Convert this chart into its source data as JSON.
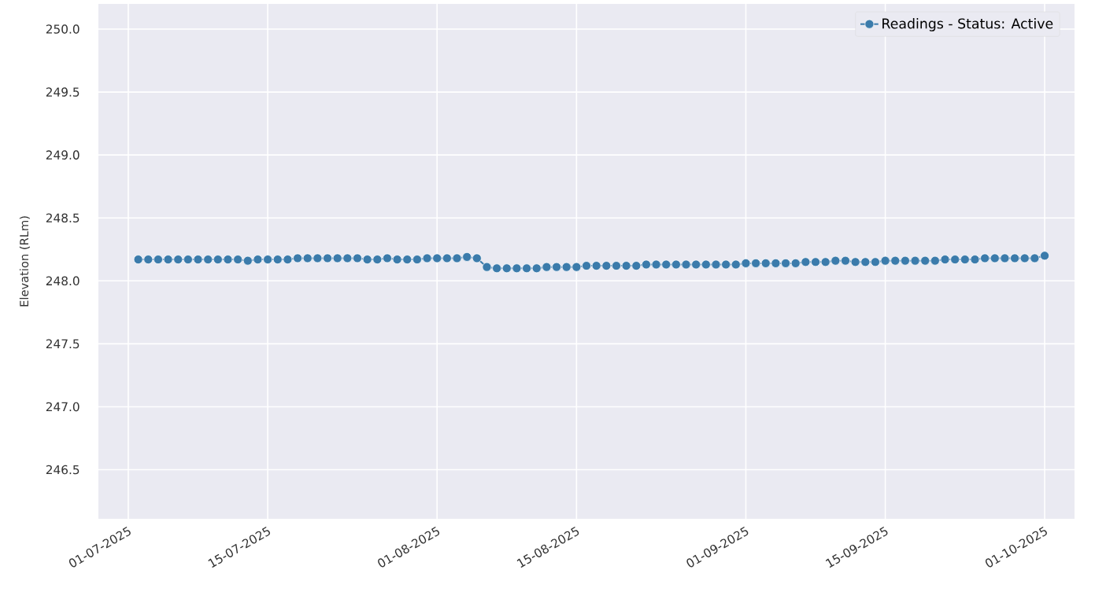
{
  "chart_data": {
    "type": "line",
    "ylabel": "Elevation (RLm)",
    "x": [
      "2025-07-02",
      "2025-07-03",
      "2025-07-04",
      "2025-07-05",
      "2025-07-06",
      "2025-07-07",
      "2025-07-08",
      "2025-07-09",
      "2025-07-10",
      "2025-07-11",
      "2025-07-12",
      "2025-07-13",
      "2025-07-14",
      "2025-07-15",
      "2025-07-16",
      "2025-07-17",
      "2025-07-18",
      "2025-07-19",
      "2025-07-20",
      "2025-07-21",
      "2025-07-22",
      "2025-07-23",
      "2025-07-24",
      "2025-07-25",
      "2025-07-26",
      "2025-07-27",
      "2025-07-28",
      "2025-07-29",
      "2025-07-30",
      "2025-07-31",
      "2025-08-01",
      "2025-08-02",
      "2025-08-03",
      "2025-08-04",
      "2025-08-05",
      "2025-08-06",
      "2025-08-07",
      "2025-08-08",
      "2025-08-09",
      "2025-08-10",
      "2025-08-11",
      "2025-08-12",
      "2025-08-13",
      "2025-08-14",
      "2025-08-15",
      "2025-08-16",
      "2025-08-17",
      "2025-08-18",
      "2025-08-19",
      "2025-08-20",
      "2025-08-21",
      "2025-08-22",
      "2025-08-23",
      "2025-08-24",
      "2025-08-25",
      "2025-08-26",
      "2025-08-27",
      "2025-08-28",
      "2025-08-29",
      "2025-08-30",
      "2025-08-31",
      "2025-09-01",
      "2025-09-02",
      "2025-09-03",
      "2025-09-04",
      "2025-09-05",
      "2025-09-06",
      "2025-09-07",
      "2025-09-08",
      "2025-09-09",
      "2025-09-10",
      "2025-09-11",
      "2025-09-12",
      "2025-09-13",
      "2025-09-14",
      "2025-09-15",
      "2025-09-16",
      "2025-09-17",
      "2025-09-18",
      "2025-09-19",
      "2025-09-20",
      "2025-09-21",
      "2025-09-22",
      "2025-09-23",
      "2025-09-24",
      "2025-09-25",
      "2025-09-26",
      "2025-09-27",
      "2025-09-28",
      "2025-09-29",
      "2025-09-30",
      "2025-10-01"
    ],
    "series": [
      {
        "name": "Readings - Status: Active",
        "color": "#3b7bab",
        "values": [
          248.17,
          248.17,
          248.17,
          248.17,
          248.17,
          248.17,
          248.17,
          248.17,
          248.17,
          248.17,
          248.17,
          248.16,
          248.17,
          248.17,
          248.17,
          248.17,
          248.18,
          248.18,
          248.18,
          248.18,
          248.18,
          248.18,
          248.18,
          248.17,
          248.17,
          248.18,
          248.17,
          248.17,
          248.17,
          248.18,
          248.18,
          248.18,
          248.18,
          248.19,
          248.18,
          248.11,
          248.1,
          248.1,
          248.1,
          248.1,
          248.1,
          248.11,
          248.11,
          248.11,
          248.11,
          248.12,
          248.12,
          248.12,
          248.12,
          248.12,
          248.12,
          248.13,
          248.13,
          248.13,
          248.13,
          248.13,
          248.13,
          248.13,
          248.13,
          248.13,
          248.13,
          248.14,
          248.14,
          248.14,
          248.14,
          248.14,
          248.14,
          248.15,
          248.15,
          248.15,
          248.16,
          248.16,
          248.15,
          248.15,
          248.15,
          248.16,
          248.16,
          248.16,
          248.16,
          248.16,
          248.16,
          248.17,
          248.17,
          248.17,
          248.17,
          248.18,
          248.18,
          248.18,
          248.18,
          248.18,
          248.18,
          248.2
        ]
      }
    ],
    "xlim": [
      "2025-06-28",
      "2025-10-04"
    ],
    "xticks": [
      {
        "value": "2025-07-01",
        "label": "01-07-2025"
      },
      {
        "value": "2025-07-15",
        "label": "15-07-2025"
      },
      {
        "value": "2025-08-01",
        "label": "01-08-2025"
      },
      {
        "value": "2025-08-15",
        "label": "15-08-2025"
      },
      {
        "value": "2025-09-01",
        "label": "01-09-2025"
      },
      {
        "value": "2025-09-15",
        "label": "15-09-2025"
      },
      {
        "value": "2025-10-01",
        "label": "01-10-2025"
      }
    ],
    "ylim": [
      246.11,
      250.2
    ],
    "yticks": [
      {
        "value": 246.5,
        "label": "246.5"
      },
      {
        "value": 247.0,
        "label": "247.0"
      },
      {
        "value": 247.5,
        "label": "247.5"
      },
      {
        "value": 248.0,
        "label": "248.0"
      },
      {
        "value": 248.5,
        "label": "248.5"
      },
      {
        "value": 249.0,
        "label": "249.0"
      },
      {
        "value": 249.5,
        "label": "249.5"
      },
      {
        "value": 250.0,
        "label": "250.0"
      }
    ],
    "grid": true,
    "legend": "top right",
    "marker": "circle",
    "line_style": "solid"
  }
}
